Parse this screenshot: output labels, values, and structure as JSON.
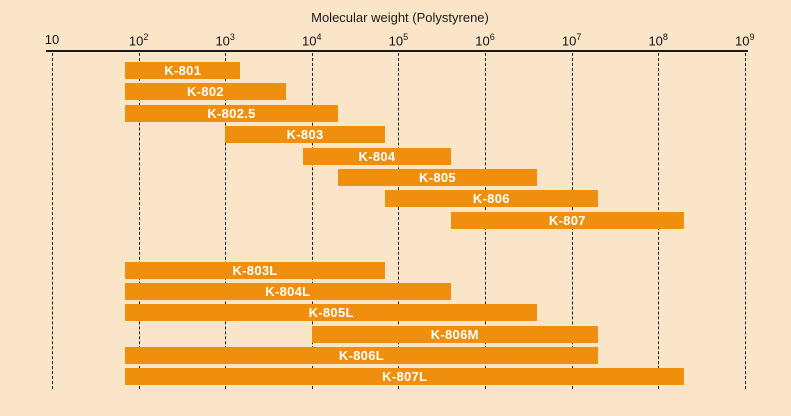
{
  "chart_data": {
    "type": "range_bar",
    "title": "Molecular weight (Polystyrene)",
    "x_axis": {
      "scale": "log10",
      "min": 10,
      "max": 1000000000,
      "grid": "dashed-vertical",
      "tick_labels": [
        {
          "base": "10",
          "sup": ""
        },
        {
          "base": "10",
          "sup": "2"
        },
        {
          "base": "10",
          "sup": "3"
        },
        {
          "base": "10",
          "sup": "4"
        },
        {
          "base": "10",
          "sup": "5"
        },
        {
          "base": "10",
          "sup": "6"
        },
        {
          "base": "10",
          "sup": "7"
        },
        {
          "base": "10",
          "sup": "8"
        },
        {
          "base": "10",
          "sup": "9"
        }
      ]
    },
    "bars": [
      {
        "label": "K-801",
        "group": 1,
        "mw_min": 70,
        "mw_max": 1500
      },
      {
        "label": "K-802",
        "group": 1,
        "mw_min": 70,
        "mw_max": 5000
      },
      {
        "label": "K-802.5",
        "group": 1,
        "mw_min": 70,
        "mw_max": 20000
      },
      {
        "label": "K-803",
        "group": 1,
        "mw_min": 1000,
        "mw_max": 70000
      },
      {
        "label": "K-804",
        "group": 1,
        "mw_min": 8000,
        "mw_max": 400000
      },
      {
        "label": "K-805",
        "group": 1,
        "mw_min": 20000,
        "mw_max": 4000000
      },
      {
        "label": "K-806",
        "group": 1,
        "mw_min": 70000,
        "mw_max": 20000000
      },
      {
        "label": "K-807",
        "group": 1,
        "mw_min": 400000,
        "mw_max": 200000000
      },
      {
        "label": "K-803L",
        "group": 2,
        "mw_min": 70,
        "mw_max": 70000
      },
      {
        "label": "K-804L",
        "group": 2,
        "mw_min": 70,
        "mw_max": 400000
      },
      {
        "label": "K-805L",
        "group": 2,
        "mw_min": 70,
        "mw_max": 4000000
      },
      {
        "label": "K-806M",
        "group": 2,
        "mw_min": 10000,
        "mw_max": 20000000
      },
      {
        "label": "K-806L",
        "group": 2,
        "mw_min": 70,
        "mw_max": 20000000
      },
      {
        "label": "K-807L",
        "group": 2,
        "mw_min": 70,
        "mw_max": 200000000
      }
    ],
    "colors": {
      "background": "#FBE5C8",
      "bar": "#EF8F0D",
      "bar_label": "#FFFFFF",
      "axis": "#1A1A1A"
    }
  }
}
